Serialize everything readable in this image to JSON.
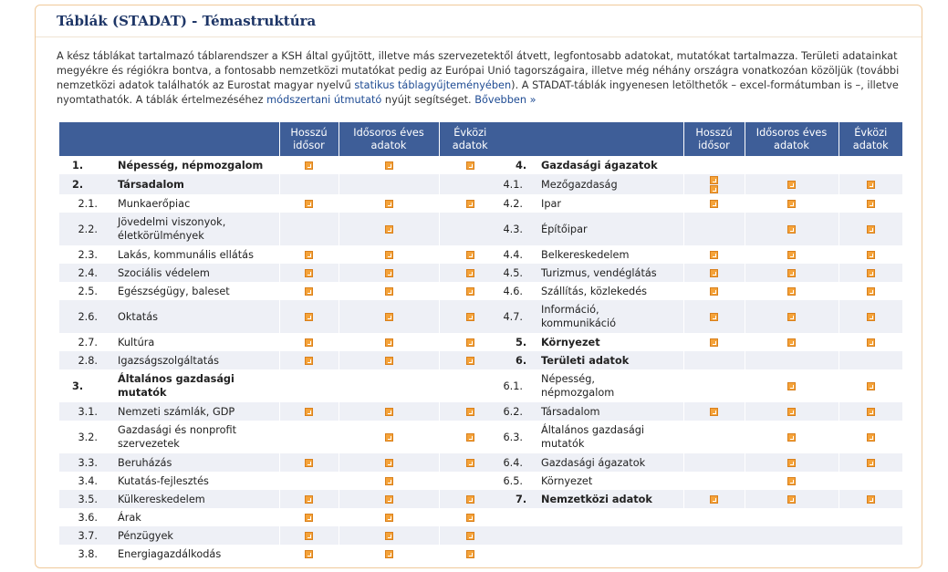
{
  "header": {
    "title": "Táblák (STADAT) - Témastruktúra"
  },
  "intro": [
    {
      "text": "A kész táblákat tartalmazó táblarendszer a KSH által gyűjtött, illetve más szervezetektől átvett, legfontosabb adatokat, mutatókat tartalmazza. Területi adatainkat megyékre és régiókra bontva, a fontosabb nemzetközi mutatókat pedig az Európai Unió tagországaira, illetve még néhány országra vonatkozóan közöljük (további nemzetközi adatok találhatók az Eurostat magyar nyelvű "
    },
    {
      "link": "statikus táblagyűjteményében"
    },
    {
      "text": "). A STADAT-táblák ingyenesen letölthetők – excel-formátumban is –, illetve nyomtathatók. A táblák értelmezéséhez "
    },
    {
      "link": "módszertani útmutató"
    },
    {
      "text": " nyújt segítséget. "
    },
    {
      "link": "Bővebben »"
    }
  ],
  "table": {
    "columns": [
      [
        "Hosszú",
        "idősor"
      ],
      [
        "Idősoros éves",
        "adatok"
      ],
      [
        "Évközi",
        "adatok"
      ]
    ],
    "rows": [
      {
        "left": {
          "num": "1.",
          "label": [
            "Népesség, népmozgalom"
          ],
          "main": true,
          "icons": [
            1,
            1,
            1
          ]
        },
        "right": {
          "num": "4.",
          "label": [
            "Gazdasági ágazatok"
          ],
          "main": true,
          "icons": [
            0,
            0,
            0
          ]
        }
      },
      {
        "left": {
          "num": "2.",
          "label": [
            "Társadalom"
          ],
          "main": true,
          "icons": [
            0,
            0,
            0
          ]
        },
        "right": {
          "num": "4.1.",
          "label": [
            "Mezőgazdaság"
          ],
          "icons": [
            2,
            1,
            1
          ]
        }
      },
      {
        "left": {
          "num": "2.1.",
          "label": [
            "Munkaerőpiac"
          ],
          "icons": [
            1,
            1,
            1
          ]
        },
        "right": {
          "num": "4.2.",
          "label": [
            "Ipar"
          ],
          "icons": [
            1,
            1,
            1
          ]
        }
      },
      {
        "left": {
          "num": "2.2.",
          "label": [
            "Jövedelmi viszonyok,",
            "életkörülmények"
          ],
          "icons": [
            0,
            1,
            0
          ]
        },
        "right": {
          "num": "4.3.",
          "label": [
            "Építőipar"
          ],
          "icons": [
            0,
            1,
            1
          ]
        }
      },
      {
        "left": {
          "num": "2.3.",
          "label": [
            "Lakás, kommunális ellátás"
          ],
          "icons": [
            1,
            1,
            1
          ]
        },
        "right": {
          "num": "4.4.",
          "label": [
            "Belkereskedelem"
          ],
          "icons": [
            1,
            1,
            1
          ]
        }
      },
      {
        "left": {
          "num": "2.4.",
          "label": [
            "Szociális védelem"
          ],
          "icons": [
            1,
            1,
            1
          ]
        },
        "right": {
          "num": "4.5.",
          "label": [
            "Turizmus, vendéglátás"
          ],
          "icons": [
            1,
            1,
            1
          ]
        }
      },
      {
        "left": {
          "num": "2.5.",
          "label": [
            "Egészségügy, baleset"
          ],
          "icons": [
            1,
            1,
            1
          ]
        },
        "right": {
          "num": "4.6.",
          "label": [
            "Szállítás, közlekedés"
          ],
          "icons": [
            1,
            1,
            1
          ]
        }
      },
      {
        "left": {
          "num": "2.6.",
          "label": [
            "Oktatás"
          ],
          "icons": [
            1,
            1,
            1
          ]
        },
        "right": {
          "num": "4.7.",
          "label": [
            "Információ,",
            "kommunikáció"
          ],
          "icons": [
            1,
            1,
            1
          ]
        }
      },
      {
        "left": {
          "num": "2.7.",
          "label": [
            "Kultúra"
          ],
          "icons": [
            1,
            1,
            1
          ]
        },
        "right": {
          "num": "5.",
          "label": [
            "Környezet"
          ],
          "main": true,
          "icons": [
            1,
            1,
            1
          ]
        }
      },
      {
        "left": {
          "num": "2.8.",
          "label": [
            "Igazságszolgáltatás"
          ],
          "icons": [
            1,
            1,
            1
          ]
        },
        "right": {
          "num": "6.",
          "label": [
            "Területi adatok"
          ],
          "main": true,
          "icons": [
            0,
            0,
            0
          ]
        }
      },
      {
        "left": {
          "num": "3.",
          "label": [
            "Általános gazdasági mutatók"
          ],
          "main": true,
          "icons": [
            0,
            0,
            0
          ]
        },
        "right": {
          "num": "6.1.",
          "label": [
            "Népesség,",
            "népmozgalom"
          ],
          "icons": [
            0,
            1,
            1
          ]
        }
      },
      {
        "left": {
          "num": "3.1.",
          "label": [
            "Nemzeti számlák, GDP"
          ],
          "icons": [
            1,
            1,
            1
          ]
        },
        "right": {
          "num": "6.2.",
          "label": [
            "Társadalom"
          ],
          "icons": [
            1,
            1,
            1
          ]
        }
      },
      {
        "left": {
          "num": "3.2.",
          "label": [
            "Gazdasági és nonprofit",
            "szervezetek"
          ],
          "icons": [
            0,
            1,
            1
          ]
        },
        "right": {
          "num": "6.3.",
          "label": [
            "Általános gazdasági",
            "mutatók"
          ],
          "icons": [
            0,
            1,
            1
          ]
        }
      },
      {
        "left": {
          "num": "3.3.",
          "label": [
            "Beruházás"
          ],
          "icons": [
            1,
            1,
            1
          ]
        },
        "right": {
          "num": "6.4.",
          "label": [
            "Gazdasági ágazatok"
          ],
          "icons": [
            0,
            1,
            1
          ]
        }
      },
      {
        "left": {
          "num": "3.4.",
          "label": [
            "Kutatás-fejlesztés"
          ],
          "icons": [
            0,
            1,
            0
          ]
        },
        "right": {
          "num": "6.5.",
          "label": [
            "Környezet"
          ],
          "icons": [
            0,
            1,
            0
          ]
        }
      },
      {
        "left": {
          "num": "3.5.",
          "label": [
            "Külkereskedelem"
          ],
          "icons": [
            1,
            1,
            1
          ]
        },
        "right": {
          "num": "7.",
          "label": [
            "Nemzetközi adatok"
          ],
          "main": true,
          "icons": [
            1,
            1,
            1
          ]
        }
      },
      {
        "left": {
          "num": "3.6.",
          "label": [
            "Árak"
          ],
          "icons": [
            1,
            1,
            1
          ]
        }
      },
      {
        "left": {
          "num": "3.7.",
          "label": [
            "Pénzügyek"
          ],
          "icons": [
            1,
            1,
            1
          ]
        }
      },
      {
        "left": {
          "num": "3.8.",
          "label": [
            "Energiagazdálkodás"
          ],
          "icons": [
            1,
            1,
            1
          ]
        }
      }
    ]
  }
}
